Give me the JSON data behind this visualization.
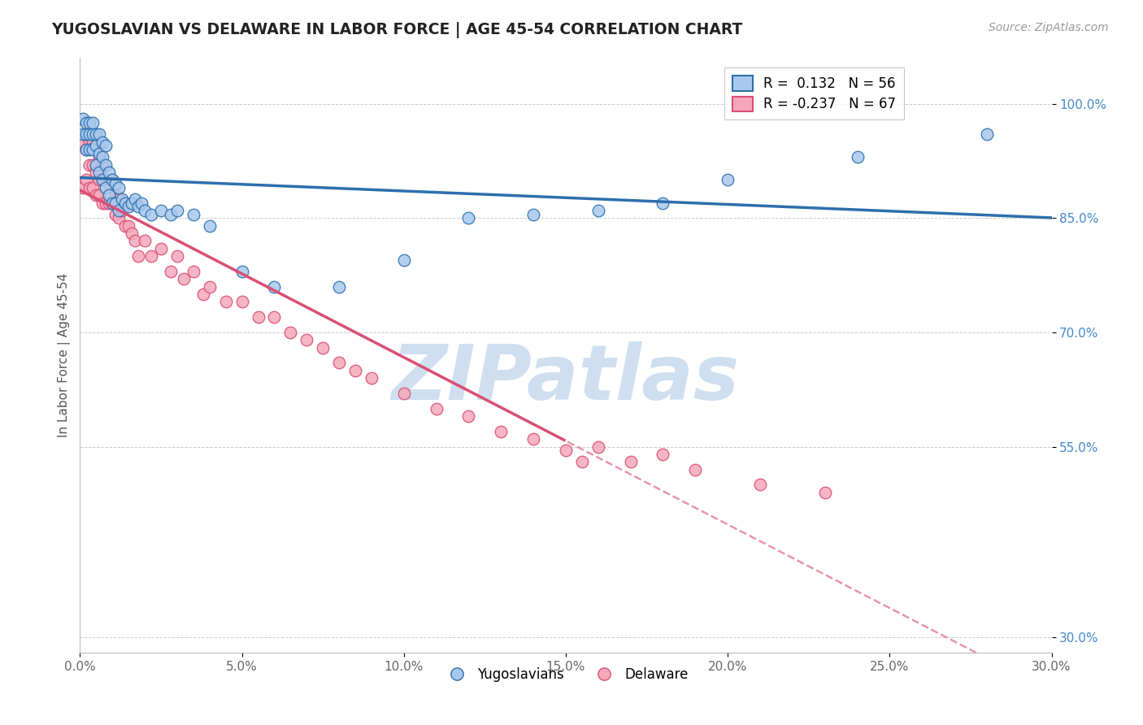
{
  "title": "YUGOSLAVIAN VS DELAWARE IN LABOR FORCE | AGE 45-54 CORRELATION CHART",
  "source": "Source: ZipAtlas.com",
  "ylabel": "In Labor Force | Age 45-54",
  "y_ticks": [
    0.3,
    0.55,
    0.7,
    0.85,
    1.0
  ],
  "y_tick_labels": [
    "30.0%",
    "55.0%",
    "70.0%",
    "85.0%",
    "100.0%"
  ],
  "x_min": 0.0,
  "x_max": 0.3,
  "y_min": 0.28,
  "y_max": 1.06,
  "legend_r1": "R =  0.132",
  "legend_n1": "N = 56",
  "legend_r2": "R = -0.237",
  "legend_n2": "N = 67",
  "blue_color": "#a8c8ed",
  "pink_color": "#f5a8bb",
  "line_blue": "#2c6fad",
  "line_pink": "#d94f72",
  "watermark": "ZIPatlas",
  "watermark_color": "#d0dff0",
  "solid_cutoff": 0.15,
  "yus_scatter_x": [
    0.001,
    0.001,
    0.002,
    0.002,
    0.002,
    0.003,
    0.003,
    0.003,
    0.004,
    0.004,
    0.004,
    0.005,
    0.005,
    0.005,
    0.006,
    0.006,
    0.006,
    0.007,
    0.007,
    0.007,
    0.008,
    0.008,
    0.008,
    0.009,
    0.009,
    0.01,
    0.01,
    0.011,
    0.011,
    0.012,
    0.012,
    0.013,
    0.014,
    0.015,
    0.016,
    0.017,
    0.018,
    0.019,
    0.02,
    0.022,
    0.025,
    0.028,
    0.03,
    0.035,
    0.04,
    0.05,
    0.06,
    0.08,
    0.1,
    0.12,
    0.14,
    0.16,
    0.18,
    0.2,
    0.24,
    0.28
  ],
  "yus_scatter_y": [
    0.96,
    0.98,
    0.94,
    0.96,
    0.975,
    0.94,
    0.96,
    0.975,
    0.94,
    0.96,
    0.975,
    0.92,
    0.945,
    0.96,
    0.91,
    0.935,
    0.96,
    0.9,
    0.93,
    0.95,
    0.89,
    0.92,
    0.945,
    0.88,
    0.91,
    0.87,
    0.9,
    0.87,
    0.895,
    0.86,
    0.89,
    0.875,
    0.87,
    0.865,
    0.87,
    0.875,
    0.865,
    0.87,
    0.86,
    0.855,
    0.86,
    0.855,
    0.86,
    0.855,
    0.84,
    0.78,
    0.76,
    0.76,
    0.795,
    0.85,
    0.855,
    0.86,
    0.87,
    0.9,
    0.93,
    0.96
  ],
  "del_scatter_x": [
    0.001,
    0.001,
    0.002,
    0.002,
    0.003,
    0.003,
    0.003,
    0.004,
    0.004,
    0.004,
    0.005,
    0.005,
    0.005,
    0.006,
    0.006,
    0.006,
    0.007,
    0.007,
    0.007,
    0.008,
    0.008,
    0.009,
    0.009,
    0.01,
    0.01,
    0.011,
    0.011,
    0.012,
    0.012,
    0.013,
    0.014,
    0.015,
    0.016,
    0.017,
    0.018,
    0.02,
    0.022,
    0.025,
    0.028,
    0.03,
    0.032,
    0.035,
    0.038,
    0.04,
    0.045,
    0.05,
    0.055,
    0.06,
    0.065,
    0.07,
    0.075,
    0.08,
    0.085,
    0.09,
    0.1,
    0.11,
    0.12,
    0.13,
    0.14,
    0.15,
    0.155,
    0.16,
    0.17,
    0.18,
    0.19,
    0.21,
    0.23
  ],
  "del_scatter_y": [
    0.89,
    0.95,
    0.9,
    0.94,
    0.89,
    0.92,
    0.95,
    0.89,
    0.92,
    0.95,
    0.88,
    0.91,
    0.94,
    0.88,
    0.9,
    0.93,
    0.87,
    0.9,
    0.92,
    0.87,
    0.9,
    0.87,
    0.895,
    0.87,
    0.9,
    0.855,
    0.88,
    0.85,
    0.875,
    0.86,
    0.84,
    0.84,
    0.83,
    0.82,
    0.8,
    0.82,
    0.8,
    0.81,
    0.78,
    0.8,
    0.77,
    0.78,
    0.75,
    0.76,
    0.74,
    0.74,
    0.72,
    0.72,
    0.7,
    0.69,
    0.68,
    0.66,
    0.65,
    0.64,
    0.62,
    0.6,
    0.59,
    0.57,
    0.56,
    0.545,
    0.53,
    0.55,
    0.53,
    0.54,
    0.52,
    0.5,
    0.49
  ]
}
